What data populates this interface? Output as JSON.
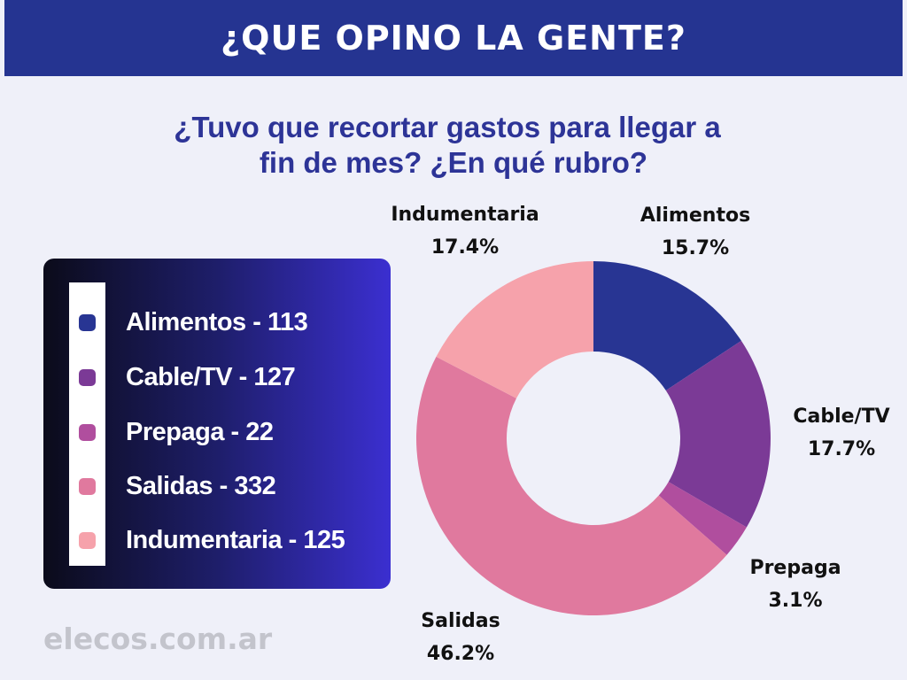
{
  "header": {
    "title": "¿QUE OPINO LA GENTE?"
  },
  "question": {
    "line1": "¿Tuvo que recortar gastos para llegar a",
    "line2": "fin de mes? ¿En qué rubro?"
  },
  "legend": {
    "items": [
      {
        "label": "Alimentos - 113",
        "color": "#283593"
      },
      {
        "label": "Cable/TV - 127",
        "color": "#7b3a96"
      },
      {
        "label": "Prepaga - 22",
        "color": "#b04e9e"
      },
      {
        "label": "Salidas - 332",
        "color": "#e0799e"
      },
      {
        "label": "Indumentaria - 125",
        "color": "#f6a2ab"
      }
    ]
  },
  "footer": {
    "site": "elecos.com.ar"
  },
  "chart_data": {
    "type": "pie",
    "donut": true,
    "title": "¿Tuvo que recortar gastos para llegar a fin de mes? ¿En qué rubro?",
    "categories": [
      "Alimentos",
      "Cable/TV",
      "Prepaga",
      "Salidas",
      "Indumentaria"
    ],
    "values": [
      113,
      127,
      22,
      332,
      125
    ],
    "percent_labels": [
      "15.7%",
      "17.7%",
      "3.1%",
      "46.2%",
      "17.4%"
    ],
    "colors": [
      "#283593",
      "#7b3a96",
      "#b04e9e",
      "#e0799e",
      "#f6a2ab"
    ],
    "start_angle_deg": 0,
    "direction": "clockwise"
  }
}
